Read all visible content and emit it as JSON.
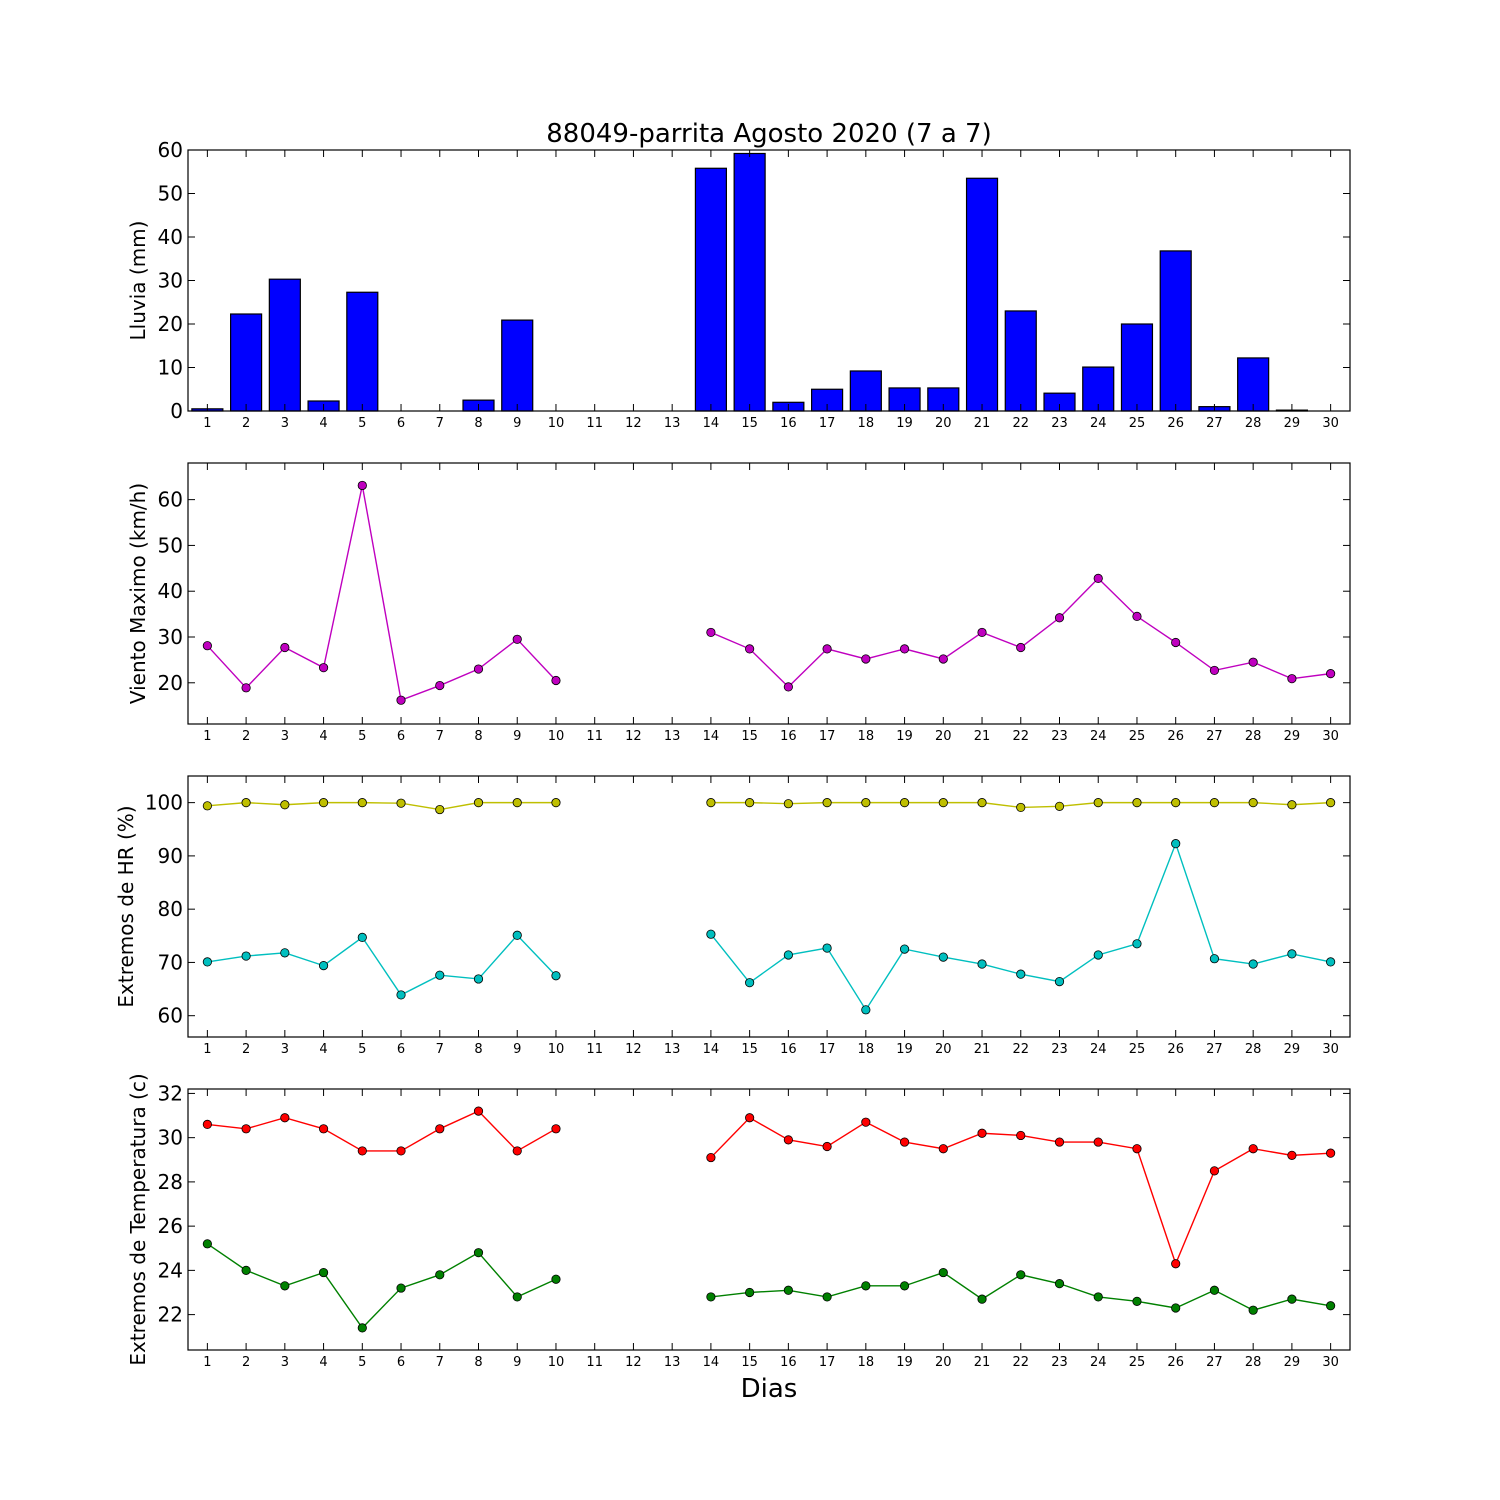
{
  "title": "88049-parrita Agosto 2020  (7 a 7)",
  "xlabel": "Dias",
  "colors": {
    "bar_fill": "#0000ff",
    "bar_edge": "#000000",
    "wind": "#bf00bf",
    "hr_max": "#bfbf00",
    "hr_min": "#00bfbf",
    "t_max": "#ff0000",
    "t_min": "#008000",
    "marker_edge": "#000000"
  },
  "chart_data": [
    {
      "type": "bar",
      "ylabel": "Lluvia (mm)",
      "x": [
        1,
        2,
        3,
        4,
        5,
        6,
        7,
        8,
        9,
        10,
        11,
        12,
        13,
        14,
        15,
        16,
        17,
        18,
        19,
        20,
        21,
        22,
        23,
        24,
        25,
        26,
        27,
        28,
        29,
        30
      ],
      "xlim": [
        0.5,
        30.5
      ],
      "ylim": [
        0,
        60
      ],
      "yticks": [
        0,
        10,
        20,
        30,
        40,
        50,
        60
      ],
      "series": [
        {
          "values": [
            0.5,
            22.3,
            30.3,
            2.3,
            27.3,
            0,
            0,
            2.5,
            20.9,
            0,
            0,
            0,
            0,
            55.8,
            59.2,
            2.0,
            5.0,
            9.2,
            5.3,
            5.3,
            53.5,
            23.0,
            4.1,
            10.1,
            20.0,
            36.8,
            1.0,
            12.2,
            0.2,
            0
          ]
        }
      ]
    },
    {
      "type": "line",
      "ylabel": "Viento Maximo (km/h)",
      "x": [
        1,
        2,
        3,
        4,
        5,
        6,
        7,
        8,
        9,
        10,
        11,
        12,
        13,
        14,
        15,
        16,
        17,
        18,
        19,
        20,
        21,
        22,
        23,
        24,
        25,
        26,
        27,
        28,
        29,
        30
      ],
      "xlim": [
        0.5,
        30.5
      ],
      "ylim": [
        11,
        68
      ],
      "yticks": [
        20,
        30,
        40,
        50,
        60
      ],
      "series": [
        {
          "values": [
            28.1,
            18.9,
            27.7,
            23.3,
            63.1,
            16.2,
            19.4,
            23.0,
            29.5,
            20.5,
            null,
            null,
            null,
            31.0,
            27.4,
            19.1,
            27.4,
            25.2,
            27.4,
            25.2,
            31.0,
            27.7,
            34.2,
            42.8,
            34.5,
            28.8,
            22.7,
            24.5,
            20.9,
            22.0
          ]
        }
      ]
    },
    {
      "type": "line",
      "ylabel": "Extremos de HR (%)",
      "x": [
        1,
        2,
        3,
        4,
        5,
        6,
        7,
        8,
        9,
        10,
        11,
        12,
        13,
        14,
        15,
        16,
        17,
        18,
        19,
        20,
        21,
        22,
        23,
        24,
        25,
        26,
        27,
        28,
        29,
        30
      ],
      "xlim": [
        0.5,
        30.5
      ],
      "ylim": [
        56,
        105
      ],
      "yticks": [
        60,
        70,
        80,
        90,
        100
      ],
      "series": [
        {
          "values": [
            99.4,
            100,
            99.6,
            100,
            100,
            99.9,
            98.7,
            100,
            100,
            100,
            null,
            null,
            null,
            100,
            100,
            99.8,
            100,
            100,
            100,
            100,
            100,
            99.1,
            99.3,
            100,
            100,
            100,
            100,
            100,
            99.6,
            100
          ]
        },
        {
          "values": [
            70.1,
            71.2,
            71.8,
            69.4,
            74.7,
            63.9,
            67.6,
            66.9,
            75.1,
            67.5,
            null,
            null,
            null,
            75.3,
            66.2,
            71.4,
            72.7,
            61.1,
            72.5,
            71.0,
            69.7,
            67.8,
            66.4,
            71.4,
            73.5,
            92.3,
            70.7,
            69.7,
            71.6,
            70.1
          ]
        }
      ]
    },
    {
      "type": "line",
      "ylabel": "Extremos de Temperatura (c)",
      "x": [
        1,
        2,
        3,
        4,
        5,
        6,
        7,
        8,
        9,
        10,
        11,
        12,
        13,
        14,
        15,
        16,
        17,
        18,
        19,
        20,
        21,
        22,
        23,
        24,
        25,
        26,
        27,
        28,
        29,
        30
      ],
      "xlim": [
        0.5,
        30.5
      ],
      "ylim": [
        20.4,
        32.2
      ],
      "yticks": [
        22,
        24,
        26,
        28,
        30,
        32
      ],
      "series": [
        {
          "values": [
            30.6,
            30.4,
            30.9,
            30.4,
            29.4,
            29.4,
            30.4,
            31.2,
            29.4,
            30.4,
            null,
            null,
            null,
            29.1,
            30.9,
            29.9,
            29.6,
            30.7,
            29.8,
            29.5,
            30.2,
            30.1,
            29.8,
            29.8,
            29.5,
            24.3,
            28.5,
            29.5,
            29.2,
            29.3
          ]
        },
        {
          "values": [
            25.2,
            24.0,
            23.3,
            23.9,
            21.4,
            23.2,
            23.8,
            24.8,
            22.8,
            23.6,
            null,
            null,
            null,
            22.8,
            23.0,
            23.1,
            22.8,
            23.3,
            23.3,
            23.9,
            22.7,
            23.8,
            23.4,
            22.8,
            22.6,
            22.3,
            23.1,
            22.2,
            22.7,
            22.4
          ]
        }
      ]
    }
  ]
}
